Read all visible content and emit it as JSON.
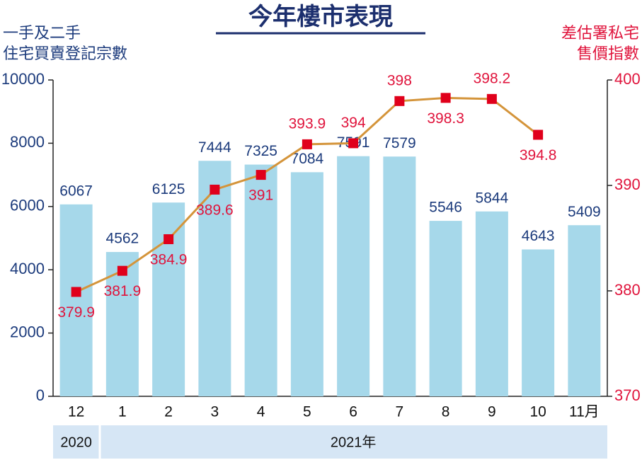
{
  "chart_data": {
    "type": "bar",
    "title": "今年樓市表現",
    "y_label": [
      "一手及二手",
      "住宅買賣登記宗數"
    ],
    "y2_label": [
      "差估署私宅",
      "售價指數"
    ],
    "categories": [
      "12",
      "1",
      "2",
      "3",
      "4",
      "5",
      "6",
      "7",
      "8",
      "9",
      "10",
      "11月"
    ],
    "year_labels": [
      "2020",
      "2021年"
    ],
    "series": [
      {
        "type": "bar",
        "color": "#a6d8ea",
        "label_color": "#1c3b7c",
        "values": [
          6067,
          4562,
          6125,
          7444,
          7325,
          7084,
          7591,
          7579,
          5546,
          5844,
          4643,
          5409
        ]
      },
      {
        "type": "line",
        "axis": "y2",
        "color": "#d4943a",
        "marker_color": "#e0001b",
        "label_color": "#e0143c",
        "values": [
          379.9,
          381.9,
          384.9,
          389.6,
          391,
          393.9,
          394,
          398,
          398.3,
          398.2,
          394.8,
          null
        ]
      }
    ],
    "ylim": [
      0,
      10000
    ],
    "yticks": [
      0,
      2000,
      4000,
      6000,
      8000,
      10000
    ],
    "y2lim": [
      370,
      400
    ],
    "y2ticks": [
      370,
      380,
      390,
      400
    ],
    "y_color": "#1c3b7c",
    "y2_color": "#e0143c"
  }
}
